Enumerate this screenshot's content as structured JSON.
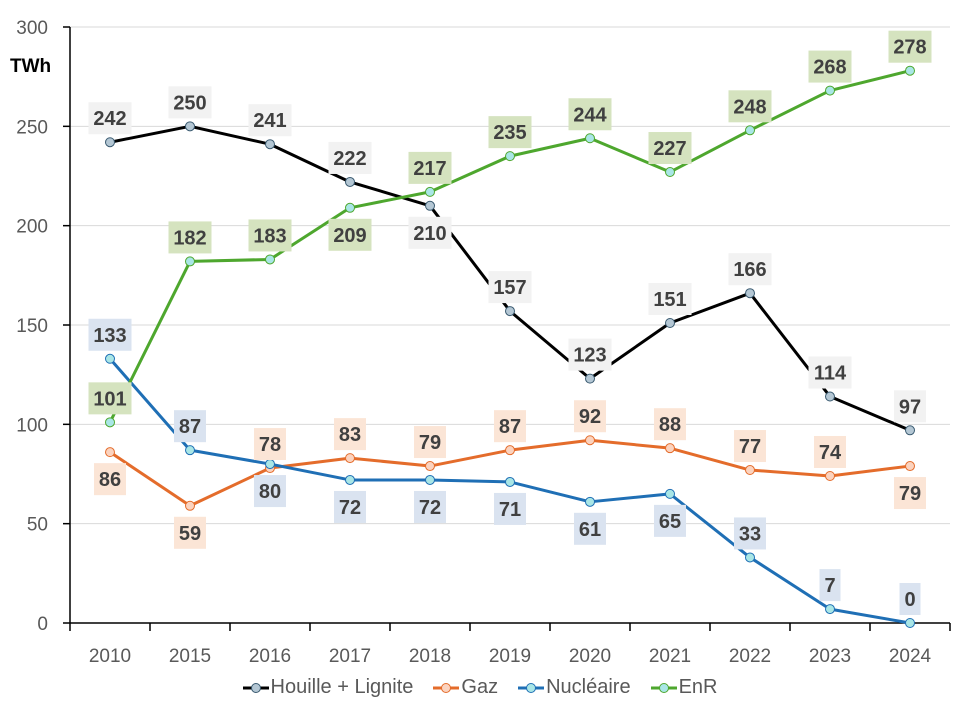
{
  "chart_data": {
    "type": "line",
    "title": "",
    "xlabel": "",
    "ylabel": "TWh",
    "ylim": [
      0,
      300
    ],
    "yticks": [
      0,
      50,
      100,
      150,
      200,
      250,
      300
    ],
    "grid": true,
    "legend_position": "bottom",
    "categories": [
      "2010",
      "2015",
      "2016",
      "2017",
      "2018",
      "2019",
      "2020",
      "2021",
      "2022",
      "2023",
      "2024"
    ],
    "series": [
      {
        "name": "Houille + Lignite",
        "color": "#000000",
        "marker_fill": "#b4c7d4",
        "label_bg": "#f2f2f2",
        "label_pos": [
          "above",
          "above",
          "above",
          "above",
          "below",
          "above",
          "above",
          "above",
          "above",
          "above",
          "above"
        ],
        "values": [
          242,
          250,
          241,
          222,
          210,
          157,
          123,
          151,
          166,
          114,
          97
        ]
      },
      {
        "name": "Gaz",
        "color": "#e46c2b",
        "marker_fill": "#fbd3bf",
        "label_bg": "#fbe5d6",
        "label_pos": [
          "below",
          "below",
          "above",
          "above",
          "above",
          "above",
          "above",
          "above",
          "above",
          "above",
          "below"
        ],
        "values": [
          86,
          59,
          78,
          83,
          79,
          87,
          92,
          88,
          77,
          74,
          79
        ]
      },
      {
        "name": "Nucléaire",
        "color": "#1f6fb5",
        "marker_fill": "#a9e6e6",
        "label_bg": "#dae3f0",
        "label_pos": [
          "above",
          "above",
          "below",
          "below",
          "below",
          "below",
          "below",
          "below",
          "above",
          "above",
          "above"
        ],
        "values": [
          133,
          87,
          80,
          72,
          72,
          71,
          61,
          65,
          33,
          7,
          0
        ]
      },
      {
        "name": "EnR",
        "color": "#4ea72e",
        "marker_fill": "#a9e6e6",
        "label_bg": "#d5e3bf",
        "label_pos": [
          "above",
          "above",
          "above",
          "below",
          "above",
          "above",
          "above",
          "above",
          "above",
          "above",
          "above"
        ],
        "values": [
          101,
          182,
          183,
          209,
          217,
          235,
          244,
          227,
          248,
          268,
          278
        ]
      }
    ]
  }
}
